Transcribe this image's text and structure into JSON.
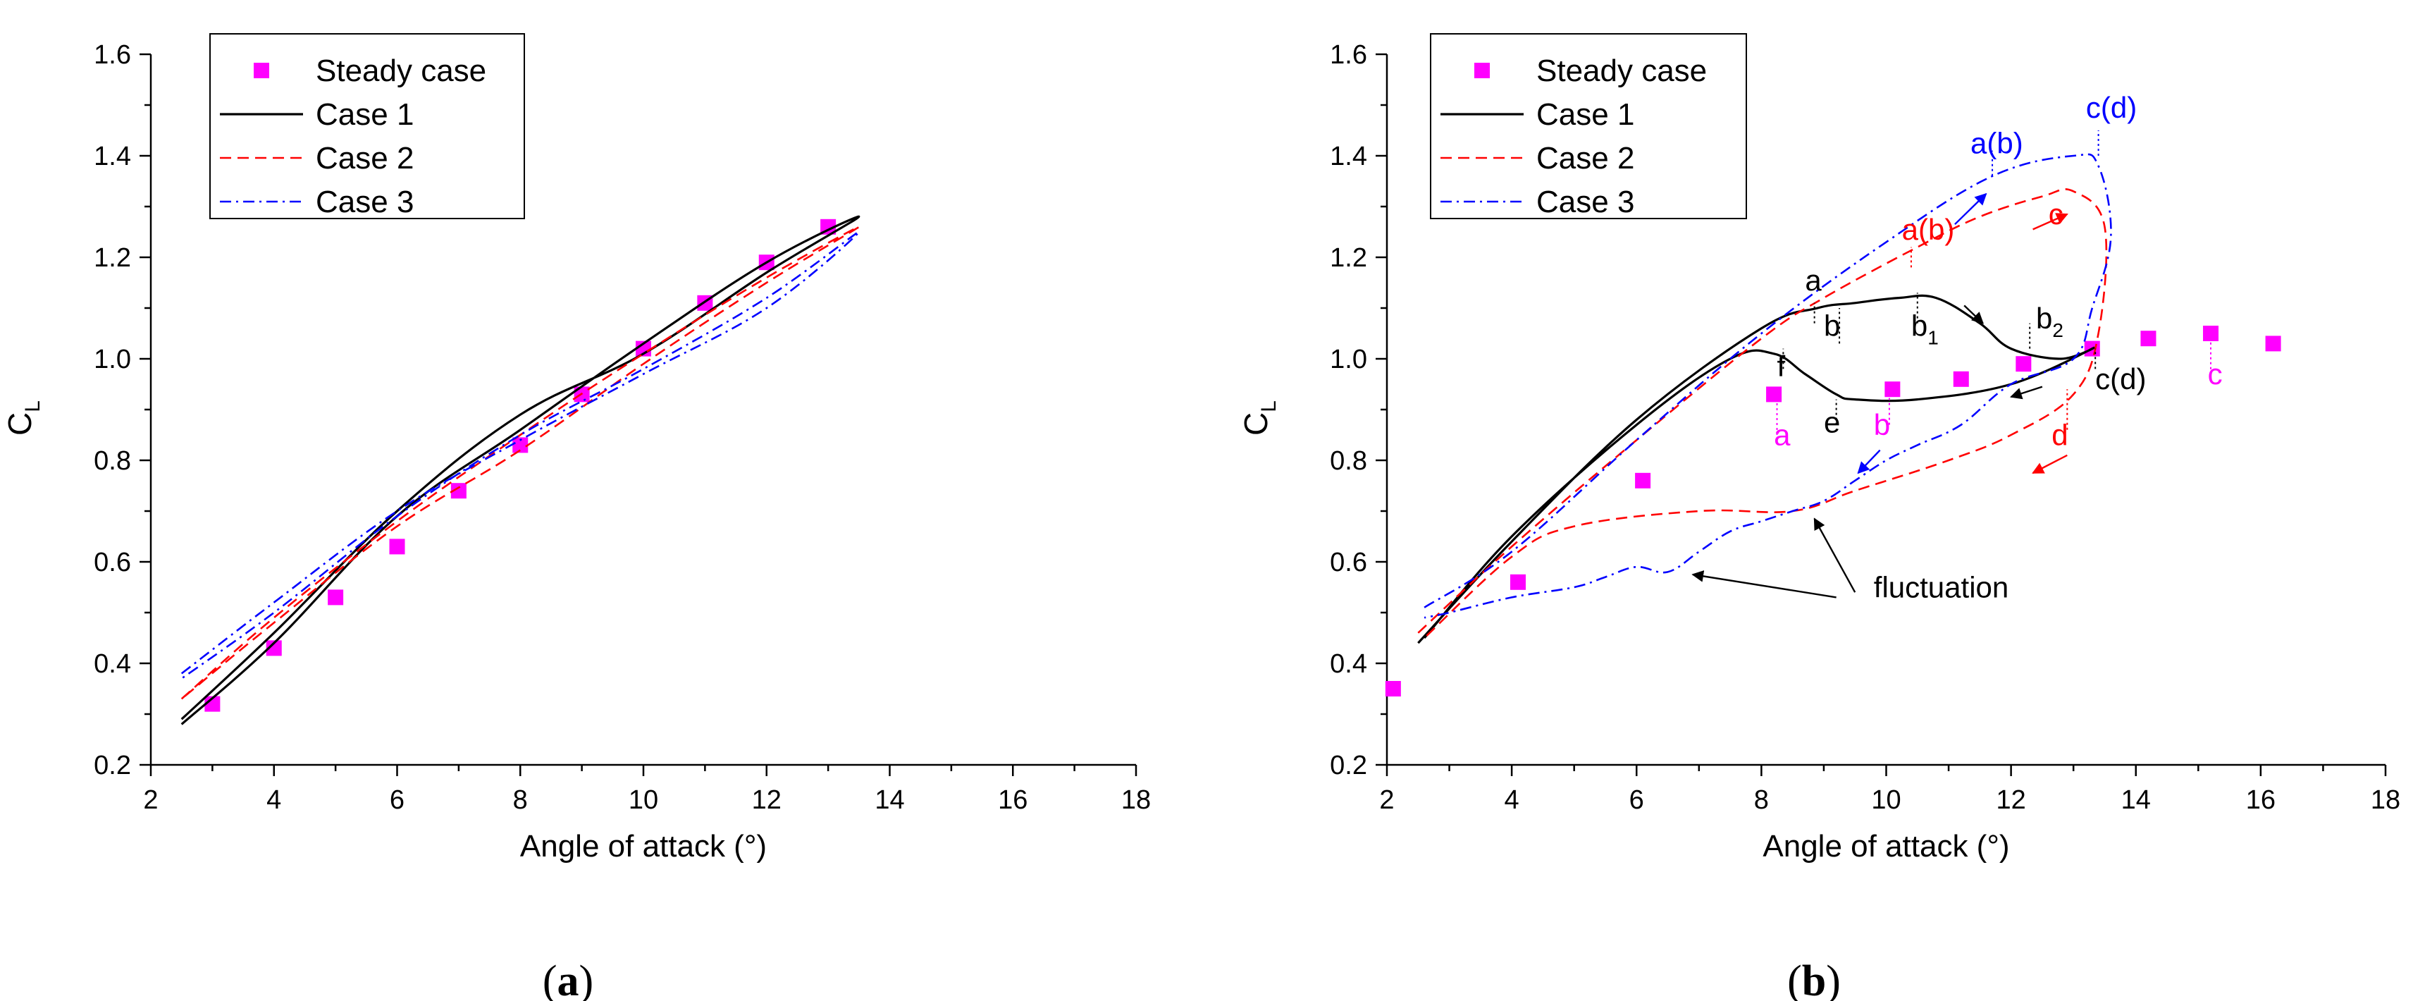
{
  "figure": {
    "caption_a": "(a)",
    "caption_a_letter": "a",
    "caption_b": "(b)",
    "caption_b_letter": "b"
  },
  "colors": {
    "steady": "#ff00ff",
    "case1": "#000000",
    "case2": "#ff0000",
    "case3": "#0000ff"
  },
  "chart_data": [
    {
      "type": "line",
      "panel": "a",
      "xlabel": "Angle of attack (°)",
      "ylabel": "C_L",
      "xlim": [
        2,
        18
      ],
      "ylim": [
        0.2,
        1.6
      ],
      "xticks": [
        2,
        4,
        6,
        8,
        10,
        12,
        14,
        16,
        18
      ],
      "yticks": [
        0.2,
        0.4,
        0.6,
        0.8,
        1.0,
        1.2,
        1.4,
        1.6
      ],
      "xtick_labels": [
        "2",
        "4",
        "6",
        "8",
        "10",
        "12",
        "14",
        "16",
        "18"
      ],
      "ytick_labels": [
        "0.2",
        "0.4",
        "0.6",
        "0.8",
        "1.0",
        "1.2",
        "1.4",
        "1.6"
      ],
      "legend": [
        "Steady case",
        "Case 1",
        "Case 2",
        "Case 3"
      ],
      "series": [
        {
          "name": "Steady case",
          "kind": "markers",
          "x": [
            3,
            4,
            5,
            6,
            7,
            8,
            9,
            10,
            11,
            12,
            13
          ],
          "y": [
            0.32,
            0.43,
            0.53,
            0.63,
            0.74,
            0.83,
            0.93,
            1.02,
            1.11,
            1.19,
            1.26
          ]
        },
        {
          "name": "Case 1",
          "kind": "solid",
          "x": [
            2.5,
            4,
            6,
            8,
            10,
            12,
            13.5,
            12,
            10,
            8,
            6,
            4,
            2.5
          ],
          "y": [
            0.28,
            0.44,
            0.69,
            0.86,
            1.03,
            1.19,
            1.28,
            1.17,
            1.01,
            0.89,
            0.7,
            0.46,
            0.29
          ]
        },
        {
          "name": "Case 2",
          "kind": "dashed",
          "x": [
            2.5,
            4,
            6,
            8,
            10,
            12,
            13.5,
            12,
            10,
            8,
            6,
            4,
            2.5
          ],
          "y": [
            0.33,
            0.49,
            0.68,
            0.85,
            1.01,
            1.16,
            1.26,
            1.15,
            0.99,
            0.82,
            0.67,
            0.48,
            0.33
          ]
        },
        {
          "name": "Case 3",
          "kind": "dashdot",
          "x": [
            2.5,
            4,
            6,
            8,
            10,
            12,
            13.5,
            12,
            10,
            8,
            6,
            4,
            2.5
          ],
          "y": [
            0.38,
            0.52,
            0.7,
            0.84,
            0.97,
            1.1,
            1.25,
            1.12,
            0.98,
            0.85,
            0.69,
            0.5,
            0.37
          ]
        }
      ]
    },
    {
      "type": "line",
      "panel": "b",
      "xlabel": "Angle of attack (°)",
      "ylabel": "C_L",
      "xlim": [
        2,
        18
      ],
      "ylim": [
        0.2,
        1.6
      ],
      "xticks": [
        2,
        4,
        6,
        8,
        10,
        12,
        14,
        16,
        18
      ],
      "yticks": [
        0.2,
        0.4,
        0.6,
        0.8,
        1.0,
        1.2,
        1.4,
        1.6
      ],
      "xtick_labels": [
        "2",
        "4",
        "6",
        "8",
        "10",
        "12",
        "14",
        "16",
        "18"
      ],
      "ytick_labels": [
        "0.2",
        "0.4",
        "0.6",
        "0.8",
        "1.0",
        "1.2",
        "1.4",
        "1.6"
      ],
      "legend": [
        "Steady case",
        "Case 1",
        "Case 2",
        "Case 3"
      ],
      "series": [
        {
          "name": "Steady case",
          "kind": "markers",
          "x": [
            2.1,
            4.1,
            6.1,
            8.2,
            10.1,
            11.2,
            12.2,
            13.3,
            14.2,
            15.2,
            16.2
          ],
          "y": [
            0.35,
            0.56,
            0.76,
            0.93,
            0.94,
            0.96,
            0.99,
            1.02,
            1.04,
            1.05,
            1.03
          ]
        },
        {
          "name": "Case 1",
          "kind": "solid",
          "x": [
            2.5,
            4,
            6,
            8,
            8.9,
            9.5,
            10.2,
            10.8,
            11.5,
            12,
            12.8,
            13.3,
            12,
            10.5,
            9.5,
            9.2,
            8.7,
            8.2,
            7.5,
            6,
            4,
            2.6
          ],
          "y": [
            0.44,
            0.64,
            0.88,
            1.06,
            1.1,
            1.11,
            1.12,
            1.12,
            1.07,
            1.02,
            1.0,
            1.02,
            0.95,
            0.92,
            0.92,
            0.93,
            0.97,
            1.01,
            1.0,
            0.87,
            0.65,
            0.45
          ]
        },
        {
          "name": "Case 2",
          "kind": "dashed",
          "x": [
            2.5,
            4,
            6,
            8,
            9,
            10.5,
            11.5,
            12.5,
            13,
            13.5,
            13.4,
            13,
            12,
            11,
            9.5,
            8.5,
            7,
            5,
            4,
            2.6
          ],
          "y": [
            0.46,
            0.63,
            0.84,
            1.04,
            1.12,
            1.22,
            1.28,
            1.32,
            1.33,
            1.26,
            1.05,
            0.93,
            0.85,
            0.8,
            0.74,
            0.7,
            0.7,
            0.67,
            0.61,
            0.45
          ]
        },
        {
          "name": "Case 3",
          "kind": "dashdot",
          "x": [
            2.6,
            4,
            6,
            8,
            10,
            11.7,
            13,
            13.4,
            13.6,
            13.3,
            13,
            12,
            11.2,
            10.5,
            10,
            9.5,
            9,
            8.5,
            8,
            7.5,
            7,
            6.5,
            6,
            5.5,
            5,
            4,
            3,
            2.6
          ],
          "y": [
            0.51,
            0.62,
            0.84,
            1.05,
            1.23,
            1.36,
            1.4,
            1.38,
            1.24,
            1.1,
            1.0,
            0.95,
            0.87,
            0.83,
            0.8,
            0.76,
            0.72,
            0.7,
            0.68,
            0.66,
            0.62,
            0.58,
            0.59,
            0.57,
            0.55,
            0.53,
            0.5,
            0.49
          ]
        }
      ],
      "annotations": [
        {
          "text": "a",
          "sub": "",
          "color": "#000000",
          "x": 8.7,
          "y": 1.135
        },
        {
          "text": "b",
          "sub": "",
          "color": "#000000",
          "x": 9.0,
          "y": 1.045
        },
        {
          "text": "b",
          "sub": "1",
          "color": "#000000",
          "x": 10.4,
          "y": 1.045
        },
        {
          "text": "b",
          "sub": "2",
          "color": "#000000",
          "x": 12.4,
          "y": 1.06
        },
        {
          "text": "f",
          "sub": "",
          "color": "#000000",
          "x": 8.25,
          "y": 0.965
        },
        {
          "text": "e",
          "sub": "",
          "color": "#000000",
          "x": 9.0,
          "y": 0.855
        },
        {
          "text": "c(d)",
          "sub": "",
          "color": "#000000",
          "x": 13.35,
          "y": 0.94
        },
        {
          "text": "a(b)",
          "sub": "",
          "color": "#ff0000",
          "x": 10.25,
          "y": 1.235
        },
        {
          "text": "c",
          "sub": "",
          "color": "#ff0000",
          "x": 12.6,
          "y": 1.265
        },
        {
          "text": "d",
          "sub": "",
          "color": "#ff0000",
          "x": 12.65,
          "y": 0.83
        },
        {
          "text": "a(b)",
          "sub": "",
          "color": "#0000ff",
          "x": 11.35,
          "y": 1.405
        },
        {
          "text": "c(d)",
          "sub": "",
          "color": "#0000ff",
          "x": 13.2,
          "y": 1.475
        },
        {
          "text": "a",
          "sub": "",
          "color": "#ff00ff",
          "x": 8.2,
          "y": 0.83
        },
        {
          "text": "b",
          "sub": "",
          "color": "#ff00ff",
          "x": 9.8,
          "y": 0.85
        },
        {
          "text": "c",
          "sub": "",
          "color": "#ff00ff",
          "x": 15.15,
          "y": 0.95
        },
        {
          "text": "fluctuation",
          "sub": "",
          "color": "#000000",
          "x": 9.8,
          "y": 0.53
        }
      ]
    }
  ]
}
